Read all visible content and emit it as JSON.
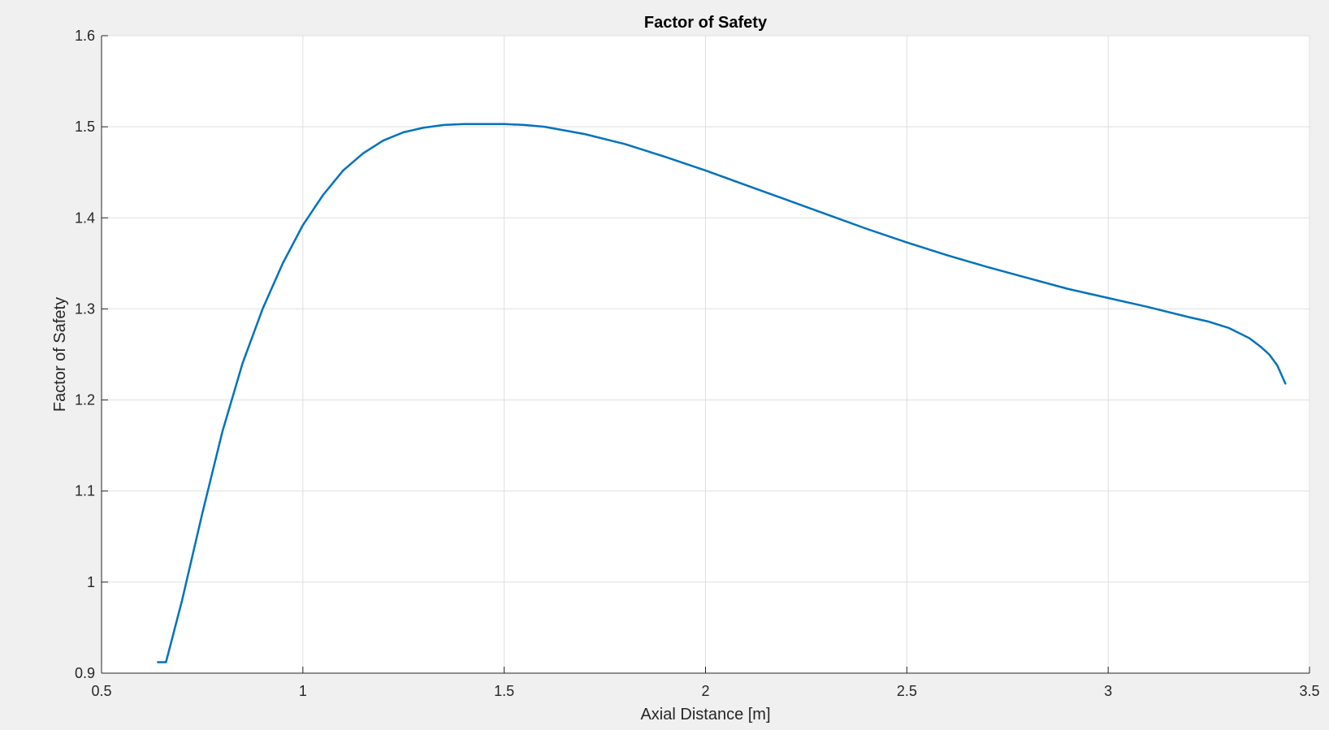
{
  "chart_data": {
    "type": "line",
    "title": "Factor of Safety",
    "xlabel": "Axial Distance [m]",
    "ylabel": "Factor of Safety",
    "xlim": [
      0.5,
      3.5
    ],
    "ylim": [
      0.9,
      1.6
    ],
    "xticks": [
      0.5,
      1,
      1.5,
      2,
      2.5,
      3,
      3.5
    ],
    "xtick_labels": [
      "0.5",
      "1",
      "1.5",
      "2",
      "2.5",
      "3",
      "3.5"
    ],
    "yticks": [
      0.9,
      1.0,
      1.1,
      1.2,
      1.3,
      1.4,
      1.5,
      1.6
    ],
    "ytick_labels": [
      "0.9",
      "1",
      "1.1",
      "1.2",
      "1.3",
      "1.4",
      "1.5",
      "1.6"
    ],
    "grid": true,
    "series": [
      {
        "color": "#0072bd",
        "x": [
          0.64,
          0.66,
          0.7,
          0.75,
          0.8,
          0.85,
          0.9,
          0.95,
          1.0,
          1.05,
          1.1,
          1.15,
          1.2,
          1.25,
          1.3,
          1.35,
          1.4,
          1.45,
          1.5,
          1.55,
          1.6,
          1.7,
          1.8,
          1.9,
          2.0,
          2.1,
          2.2,
          2.3,
          2.4,
          2.5,
          2.6,
          2.7,
          2.8,
          2.9,
          3.0,
          3.1,
          3.2,
          3.25,
          3.3,
          3.35,
          3.38,
          3.4,
          3.42,
          3.43,
          3.44
        ],
        "y": [
          0.912,
          0.912,
          0.98,
          1.075,
          1.165,
          1.24,
          1.3,
          1.35,
          1.392,
          1.425,
          1.452,
          1.471,
          1.485,
          1.494,
          1.499,
          1.502,
          1.503,
          1.503,
          1.503,
          1.502,
          1.5,
          1.492,
          1.481,
          1.467,
          1.452,
          1.436,
          1.42,
          1.404,
          1.388,
          1.373,
          1.359,
          1.346,
          1.334,
          1.322,
          1.312,
          1.302,
          1.291,
          1.286,
          1.279,
          1.268,
          1.258,
          1.25,
          1.238,
          1.228,
          1.218
        ]
      }
    ]
  },
  "colors": {
    "figure_background": "#f0f0f0",
    "axes_background": "#ffffff",
    "grid": "#dfdfdf",
    "axis_line": "#262626",
    "line": "#0072bd"
  }
}
